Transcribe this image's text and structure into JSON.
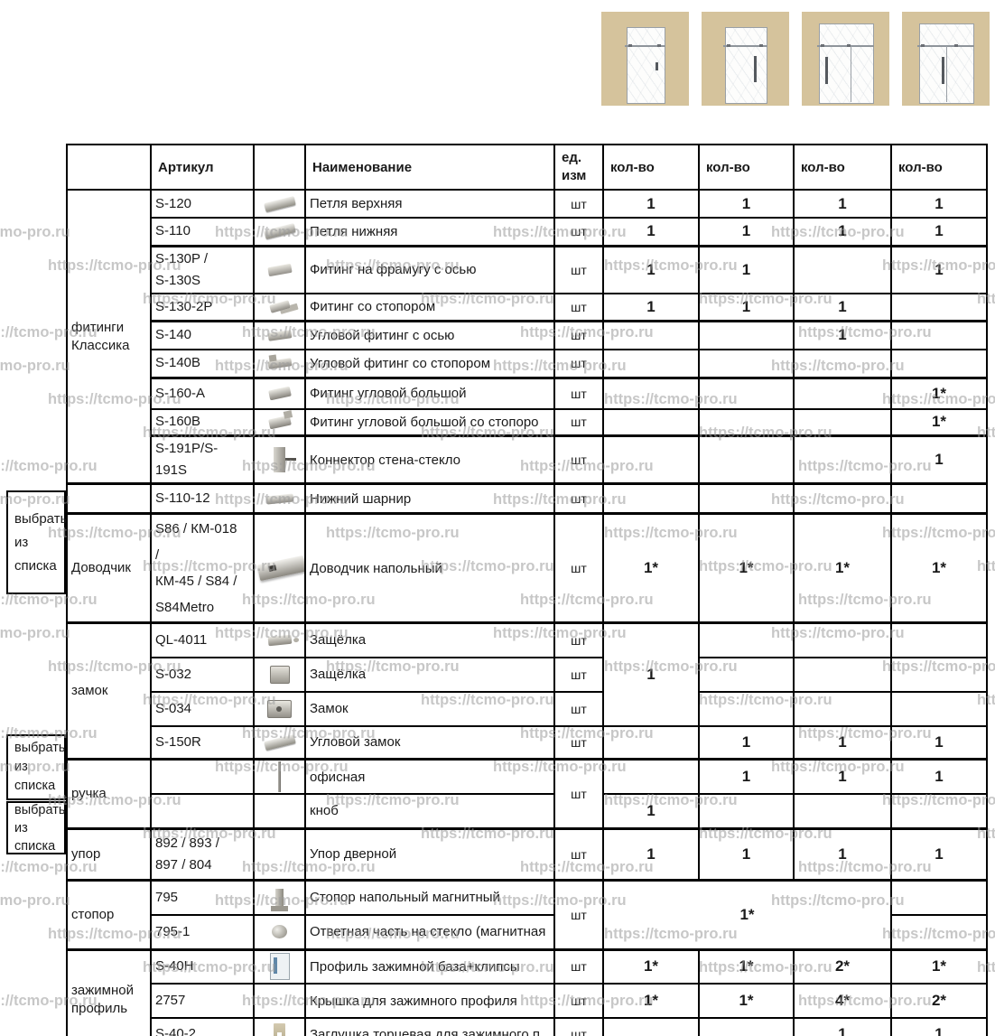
{
  "watermark": {
    "text": "https://tcmo-pro.ru"
  },
  "colors": {
    "wall_beige": "#d5c39c",
    "border_black": "#000000",
    "watermark_gray": "#9b9b9b"
  },
  "diagrams": {
    "items": [
      "single-door-with-transom",
      "single-door-with-transom-and-handle",
      "door-with-side-panel-handle-left",
      "door-with-side-panel-handle-center"
    ]
  },
  "side_labels": [
    {
      "text": "выбрать\nиз\nсписка"
    },
    {
      "text": "выбрать\nиз\nсписка"
    },
    {
      "text": "выбрать\nиз\nсписка"
    }
  ],
  "table": {
    "headers": {
      "article": "Артикул",
      "name": "Наименование",
      "unit": "ед.\nизм",
      "qty": "кол-во"
    },
    "rows": [
      {
        "g": "фитинги\nКлассика",
        "a": "S-120",
        "photo": "hinge-top",
        "n": "Петля верхняя",
        "u": "шт",
        "q1": "1",
        "q2": "1",
        "q3": "1",
        "q4": "1"
      },
      {
        "a": "S-110",
        "photo": "hinge-bottom",
        "n": "Петля нижняя",
        "u": "шт",
        "q1": "1",
        "q2": "1",
        "q3": "1",
        "q4": "1"
      },
      {
        "a": "S-130P /\nS-130S",
        "photo": "fitting",
        "n": "Фитинг на фрамугу с осью",
        "u": "шт",
        "q1": "1",
        "q2": "1",
        "q3": "",
        "q4": "1"
      },
      {
        "a": "S-130-2P",
        "photo": "fitting-stopper",
        "n": "Фитинг со стопором",
        "u": "шт",
        "q1": "1",
        "q2": "1",
        "q3": "1",
        "q4": ""
      },
      {
        "a": "S-140",
        "photo": "corner-fitting",
        "n": "Угловой фитинг с осью",
        "u": "шт",
        "q1": "",
        "q2": "",
        "q3": "1",
        "q4": ""
      },
      {
        "a": "S-140B",
        "photo": "corner-fitting-stopper",
        "n": "Угловой фитинг со стопором",
        "u": "шт",
        "q1": "",
        "q2": "",
        "q3": "",
        "q4": ""
      },
      {
        "a": "S-160-A",
        "photo": "corner-fitting-large",
        "n": "Фитинг угловой большой",
        "u": "шт",
        "q1": "",
        "q2": "",
        "q3": "",
        "q4": "1*"
      },
      {
        "a": "S-160B",
        "photo": "corner-fitting-large-stopper",
        "n": "Фитинг угловой большой со стопоро",
        "u": "шт",
        "q1": "",
        "q2": "",
        "q3": "",
        "q4": "1*"
      },
      {
        "a": "S-191P/S-191S",
        "photo": "connector",
        "n": "Коннектор стена-стекло",
        "u": "шт",
        "q1": "",
        "q2": "",
        "q3": "",
        "q4": "1"
      },
      {
        "g": "",
        "a": "S-110-12",
        "photo": "pivot",
        "n": "Нижний шарнир",
        "u": "шт",
        "q1": "",
        "q2": "",
        "q3": "",
        "q4": ""
      },
      {
        "g": "Доводчик",
        "a": "S86 / КМ-018\n/\nКМ-45 / S84 /\nS84Metro",
        "photo": "floor-closer",
        "n": "Доводчик напольный",
        "u": "шт",
        "q1": "1*",
        "q2": "1*",
        "q3": "1*",
        "q4": "1*"
      },
      {
        "g": "замок",
        "a": "QL-4011",
        "photo": "latch-1",
        "n": "Защёлка",
        "u": "шт",
        "q1": "1",
        "q2": "",
        "q3": "",
        "q4": ""
      },
      {
        "a": "S-032",
        "photo": "latch-2",
        "n": "Защёлка",
        "u": "шт",
        "q2": "",
        "q3": "",
        "q4": ""
      },
      {
        "a": "S-034",
        "photo": "lock",
        "n": "Замок",
        "u": "шт",
        "q2": "",
        "q3": "",
        "q4": ""
      },
      {
        "a": "S-150R",
        "photo": "corner-lock",
        "n": "Угловой замок",
        "u": "шт",
        "q1": "",
        "q2": "1",
        "q3": "1",
        "q4": "1"
      },
      {
        "g": "ручка",
        "a": "",
        "photo": "handle",
        "n": "офисная",
        "u": "шт",
        "q1": "",
        "q2": "1",
        "q3": "1",
        "q4": "1"
      },
      {
        "a": "",
        "photo": "",
        "n": "кноб",
        "q1": "1",
        "q2": "",
        "q3": "",
        "q4": ""
      },
      {
        "g": "упор",
        "a": "892 / 893 /\n897 / 804",
        "photo": "",
        "n": "Упор дверной",
        "u": "шт",
        "q1": "1",
        "q2": "1",
        "q3": "1",
        "q4": "1"
      },
      {
        "g": "стопор",
        "a": "795",
        "photo": "floor-stopper",
        "n": "Стопор напольный магнитный",
        "u": "шт",
        "qm": "1*",
        "q4": ""
      },
      {
        "a": "795-1",
        "photo": "magnet",
        "n": "Ответная часть на стекло (магнитная",
        "q4": ""
      },
      {
        "g": "зажимной\nпрофиль",
        "a": "S-40H",
        "photo": "clamp-profile",
        "n": "Профиль зажимной база+клипсы",
        "u": "шт",
        "q1": "1*",
        "q2": "1*",
        "q3": "2*",
        "q4": "1*"
      },
      {
        "a": "2757",
        "photo": "",
        "n": "Крышка для зажимного профиля",
        "u": "шт",
        "q1": "1*",
        "q2": "1*",
        "q3": "4*",
        "q4": "2*"
      },
      {
        "a": "S-40-2",
        "photo": "end-cap",
        "n": "Заглушка торцевая для зажимного п",
        "u": "шт",
        "q1": "",
        "q2": "",
        "q3": "1",
        "q4": "1"
      }
    ]
  }
}
